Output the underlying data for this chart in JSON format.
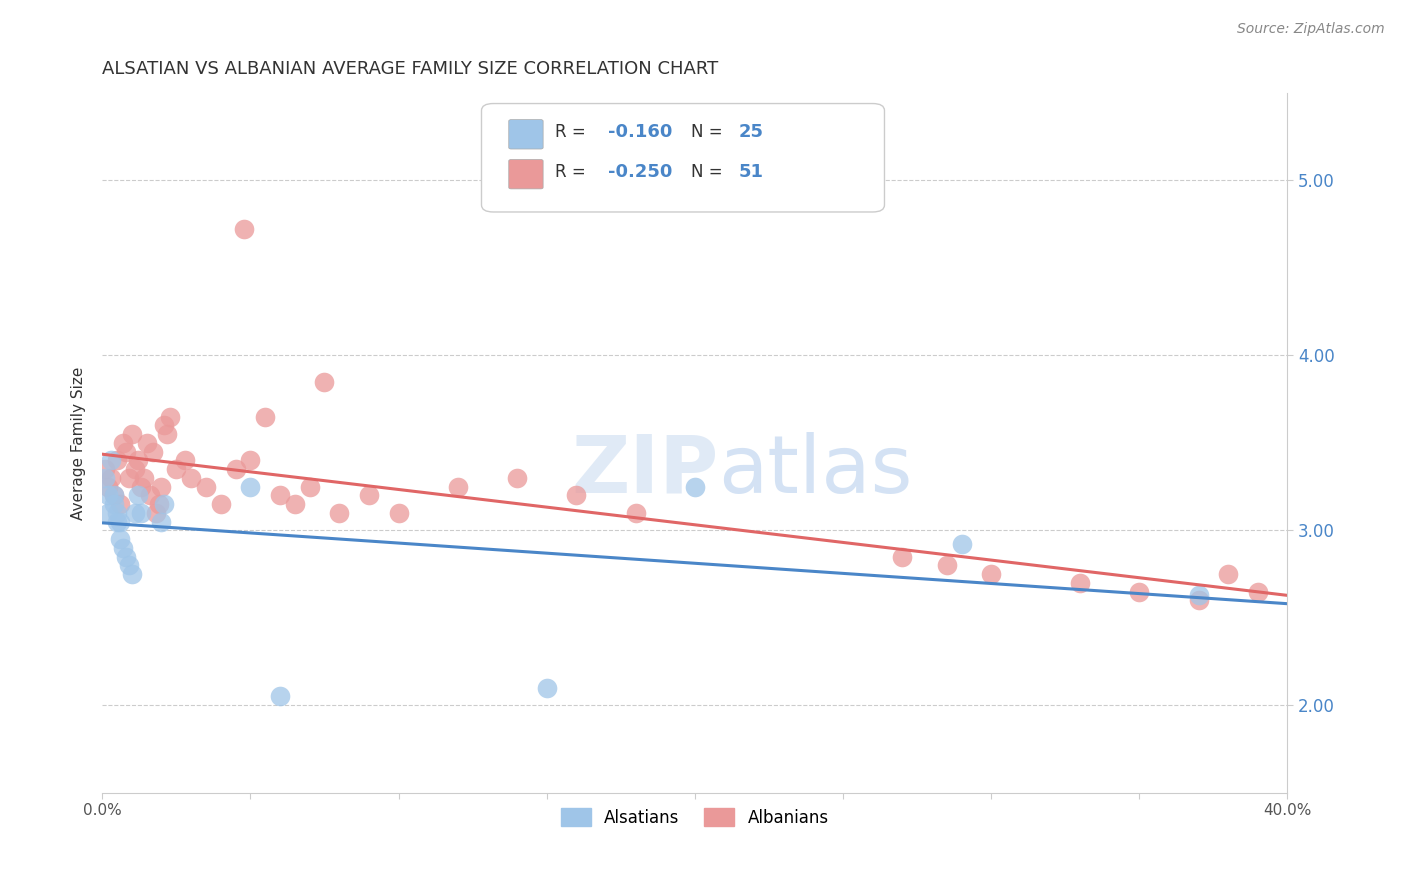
{
  "title": "ALSATIAN VS ALBANIAN AVERAGE FAMILY SIZE CORRELATION CHART",
  "source": "Source: ZipAtlas.com",
  "ylabel": "Average Family Size",
  "xlim": [
    0.0,
    0.4
  ],
  "ylim": [
    1.5,
    5.5
  ],
  "yticks": [
    2.0,
    3.0,
    4.0,
    5.0
  ],
  "xticks": [
    0.0,
    0.05,
    0.1,
    0.15,
    0.2,
    0.25,
    0.3,
    0.35,
    0.4
  ],
  "xtick_labels": [
    "0.0%",
    "",
    "",
    "",
    "",
    "",
    "",
    "",
    "40.0%"
  ],
  "background_color": "#ffffff",
  "grid_color": "#cccccc",
  "watermark_zip": "ZIP",
  "watermark_atlas": "atlas",
  "legend_r_alsatian": "R = -0.160",
  "legend_n_alsatian": "N = 25",
  "legend_r_albanian": "R = -0.250",
  "legend_n_albanian": "N = 51",
  "alsatian_color": "#9fc5e8",
  "albanian_color": "#ea9999",
  "alsatian_line_color": "#4a86c8",
  "albanian_line_color": "#e06666",
  "alsatian_x": [
    0.001,
    0.002,
    0.002,
    0.003,
    0.004,
    0.004,
    0.005,
    0.005,
    0.006,
    0.006,
    0.007,
    0.008,
    0.009,
    0.01,
    0.011,
    0.012,
    0.013,
    0.02,
    0.021,
    0.05,
    0.06,
    0.15,
    0.2,
    0.29,
    0.37
  ],
  "alsatian_y": [
    3.3,
    3.2,
    3.1,
    3.4,
    3.2,
    3.15,
    3.1,
    3.05,
    2.95,
    3.05,
    2.9,
    2.85,
    2.8,
    2.75,
    3.1,
    3.2,
    3.1,
    3.05,
    3.15,
    3.25,
    2.05,
    2.1,
    3.25,
    2.92,
    2.63
  ],
  "albanian_x": [
    0.001,
    0.002,
    0.003,
    0.004,
    0.005,
    0.006,
    0.007,
    0.008,
    0.009,
    0.01,
    0.011,
    0.012,
    0.013,
    0.014,
    0.015,
    0.016,
    0.017,
    0.018,
    0.019,
    0.02,
    0.021,
    0.022,
    0.023,
    0.025,
    0.028,
    0.03,
    0.035,
    0.04,
    0.045,
    0.05,
    0.055,
    0.06,
    0.065,
    0.07,
    0.08,
    0.09,
    0.1,
    0.12,
    0.14,
    0.16,
    0.18,
    0.27,
    0.285,
    0.3,
    0.33,
    0.35,
    0.37,
    0.38,
    0.39,
    0.048,
    0.075
  ],
  "albanian_y": [
    3.35,
    3.25,
    3.3,
    3.2,
    3.4,
    3.15,
    3.5,
    3.45,
    3.3,
    3.55,
    3.35,
    3.4,
    3.25,
    3.3,
    3.5,
    3.2,
    3.45,
    3.1,
    3.15,
    3.25,
    3.6,
    3.55,
    3.65,
    3.35,
    3.4,
    3.3,
    3.25,
    3.15,
    3.35,
    3.4,
    3.65,
    3.2,
    3.15,
    3.25,
    3.1,
    3.2,
    3.1,
    3.25,
    3.3,
    3.2,
    3.1,
    2.85,
    2.8,
    2.75,
    2.7,
    2.65,
    2.6,
    2.75,
    2.65,
    4.72,
    3.85
  ]
}
